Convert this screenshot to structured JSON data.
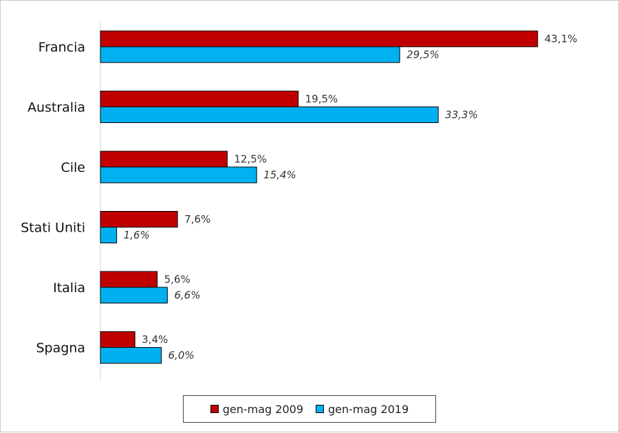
{
  "chart_data": {
    "type": "bar",
    "orientation": "horizontal",
    "categories": [
      "Francia",
      "Australia",
      "Cile",
      "Stati Uniti",
      "Italia",
      "Spagna"
    ],
    "series": [
      {
        "name": "gen-mag 2009",
        "values": [
          43.1,
          19.5,
          12.5,
          7.6,
          5.6,
          3.4
        ],
        "labels": [
          "43,1%",
          "19,5%",
          "12,5%",
          "7,6%",
          "5,6%",
          "3,4%"
        ],
        "color": "#C00000"
      },
      {
        "name": "gen-mag 2019",
        "values": [
          29.5,
          33.3,
          15.4,
          1.6,
          6.6,
          6.0
        ],
        "labels": [
          "29,5%",
          "33,3%",
          "15,4%",
          "1,6%",
          "6,6%",
          "6,0%"
        ],
        "color": "#00B0F0"
      }
    ],
    "xlim": [
      0,
      50
    ],
    "grid": false,
    "legend_position": "bottom"
  }
}
